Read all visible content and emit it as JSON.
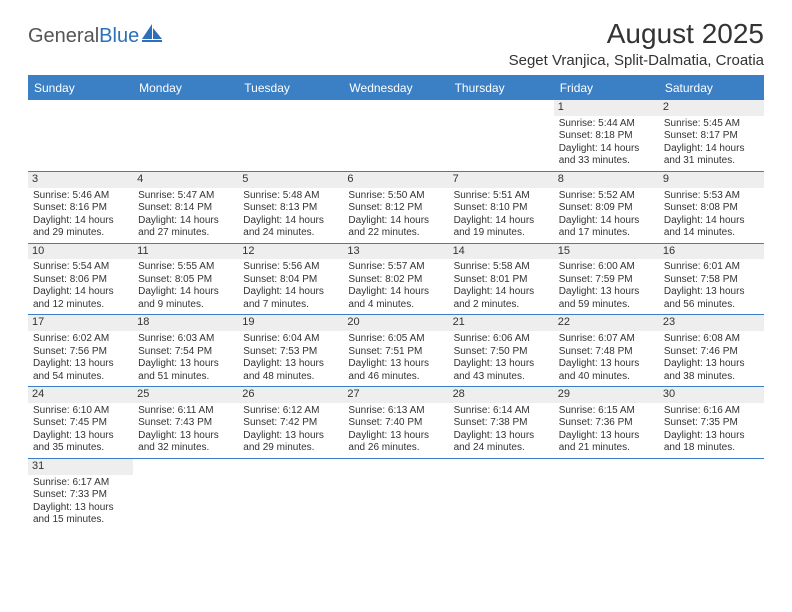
{
  "brand": {
    "part1": "General",
    "part2": "Blue"
  },
  "title": "August 2025",
  "location": "Seget Vranjica, Split-Dalmatia, Croatia",
  "colors": {
    "header_bg": "#3b7fc4",
    "header_text": "#ffffff",
    "daynum_bg": "#eeeeee",
    "rule": "#3b7fc4",
    "text": "#333333",
    "background": "#ffffff"
  },
  "day_headers": [
    "Sunday",
    "Monday",
    "Tuesday",
    "Wednesday",
    "Thursday",
    "Friday",
    "Saturday"
  ],
  "weeks": [
    [
      {
        "n": "",
        "empty": true
      },
      {
        "n": "",
        "empty": true
      },
      {
        "n": "",
        "empty": true
      },
      {
        "n": "",
        "empty": true
      },
      {
        "n": "",
        "empty": true
      },
      {
        "n": "1",
        "sunrise": "Sunrise: 5:44 AM",
        "sunset": "Sunset: 8:18 PM",
        "daylight": "Daylight: 14 hours and 33 minutes."
      },
      {
        "n": "2",
        "sunrise": "Sunrise: 5:45 AM",
        "sunset": "Sunset: 8:17 PM",
        "daylight": "Daylight: 14 hours and 31 minutes."
      }
    ],
    [
      {
        "n": "3",
        "sunrise": "Sunrise: 5:46 AM",
        "sunset": "Sunset: 8:16 PM",
        "daylight": "Daylight: 14 hours and 29 minutes."
      },
      {
        "n": "4",
        "sunrise": "Sunrise: 5:47 AM",
        "sunset": "Sunset: 8:14 PM",
        "daylight": "Daylight: 14 hours and 27 minutes."
      },
      {
        "n": "5",
        "sunrise": "Sunrise: 5:48 AM",
        "sunset": "Sunset: 8:13 PM",
        "daylight": "Daylight: 14 hours and 24 minutes."
      },
      {
        "n": "6",
        "sunrise": "Sunrise: 5:50 AM",
        "sunset": "Sunset: 8:12 PM",
        "daylight": "Daylight: 14 hours and 22 minutes."
      },
      {
        "n": "7",
        "sunrise": "Sunrise: 5:51 AM",
        "sunset": "Sunset: 8:10 PM",
        "daylight": "Daylight: 14 hours and 19 minutes."
      },
      {
        "n": "8",
        "sunrise": "Sunrise: 5:52 AM",
        "sunset": "Sunset: 8:09 PM",
        "daylight": "Daylight: 14 hours and 17 minutes."
      },
      {
        "n": "9",
        "sunrise": "Sunrise: 5:53 AM",
        "sunset": "Sunset: 8:08 PM",
        "daylight": "Daylight: 14 hours and 14 minutes."
      }
    ],
    [
      {
        "n": "10",
        "sunrise": "Sunrise: 5:54 AM",
        "sunset": "Sunset: 8:06 PM",
        "daylight": "Daylight: 14 hours and 12 minutes."
      },
      {
        "n": "11",
        "sunrise": "Sunrise: 5:55 AM",
        "sunset": "Sunset: 8:05 PM",
        "daylight": "Daylight: 14 hours and 9 minutes."
      },
      {
        "n": "12",
        "sunrise": "Sunrise: 5:56 AM",
        "sunset": "Sunset: 8:04 PM",
        "daylight": "Daylight: 14 hours and 7 minutes."
      },
      {
        "n": "13",
        "sunrise": "Sunrise: 5:57 AM",
        "sunset": "Sunset: 8:02 PM",
        "daylight": "Daylight: 14 hours and 4 minutes."
      },
      {
        "n": "14",
        "sunrise": "Sunrise: 5:58 AM",
        "sunset": "Sunset: 8:01 PM",
        "daylight": "Daylight: 14 hours and 2 minutes."
      },
      {
        "n": "15",
        "sunrise": "Sunrise: 6:00 AM",
        "sunset": "Sunset: 7:59 PM",
        "daylight": "Daylight: 13 hours and 59 minutes."
      },
      {
        "n": "16",
        "sunrise": "Sunrise: 6:01 AM",
        "sunset": "Sunset: 7:58 PM",
        "daylight": "Daylight: 13 hours and 56 minutes."
      }
    ],
    [
      {
        "n": "17",
        "sunrise": "Sunrise: 6:02 AM",
        "sunset": "Sunset: 7:56 PM",
        "daylight": "Daylight: 13 hours and 54 minutes."
      },
      {
        "n": "18",
        "sunrise": "Sunrise: 6:03 AM",
        "sunset": "Sunset: 7:54 PM",
        "daylight": "Daylight: 13 hours and 51 minutes."
      },
      {
        "n": "19",
        "sunrise": "Sunrise: 6:04 AM",
        "sunset": "Sunset: 7:53 PM",
        "daylight": "Daylight: 13 hours and 48 minutes."
      },
      {
        "n": "20",
        "sunrise": "Sunrise: 6:05 AM",
        "sunset": "Sunset: 7:51 PM",
        "daylight": "Daylight: 13 hours and 46 minutes."
      },
      {
        "n": "21",
        "sunrise": "Sunrise: 6:06 AM",
        "sunset": "Sunset: 7:50 PM",
        "daylight": "Daylight: 13 hours and 43 minutes."
      },
      {
        "n": "22",
        "sunrise": "Sunrise: 6:07 AM",
        "sunset": "Sunset: 7:48 PM",
        "daylight": "Daylight: 13 hours and 40 minutes."
      },
      {
        "n": "23",
        "sunrise": "Sunrise: 6:08 AM",
        "sunset": "Sunset: 7:46 PM",
        "daylight": "Daylight: 13 hours and 38 minutes."
      }
    ],
    [
      {
        "n": "24",
        "sunrise": "Sunrise: 6:10 AM",
        "sunset": "Sunset: 7:45 PM",
        "daylight": "Daylight: 13 hours and 35 minutes."
      },
      {
        "n": "25",
        "sunrise": "Sunrise: 6:11 AM",
        "sunset": "Sunset: 7:43 PM",
        "daylight": "Daylight: 13 hours and 32 minutes."
      },
      {
        "n": "26",
        "sunrise": "Sunrise: 6:12 AM",
        "sunset": "Sunset: 7:42 PM",
        "daylight": "Daylight: 13 hours and 29 minutes."
      },
      {
        "n": "27",
        "sunrise": "Sunrise: 6:13 AM",
        "sunset": "Sunset: 7:40 PM",
        "daylight": "Daylight: 13 hours and 26 minutes."
      },
      {
        "n": "28",
        "sunrise": "Sunrise: 6:14 AM",
        "sunset": "Sunset: 7:38 PM",
        "daylight": "Daylight: 13 hours and 24 minutes."
      },
      {
        "n": "29",
        "sunrise": "Sunrise: 6:15 AM",
        "sunset": "Sunset: 7:36 PM",
        "daylight": "Daylight: 13 hours and 21 minutes."
      },
      {
        "n": "30",
        "sunrise": "Sunrise: 6:16 AM",
        "sunset": "Sunset: 7:35 PM",
        "daylight": "Daylight: 13 hours and 18 minutes."
      }
    ],
    [
      {
        "n": "31",
        "sunrise": "Sunrise: 6:17 AM",
        "sunset": "Sunset: 7:33 PM",
        "daylight": "Daylight: 13 hours and 15 minutes."
      },
      {
        "n": "",
        "empty": true
      },
      {
        "n": "",
        "empty": true
      },
      {
        "n": "",
        "empty": true
      },
      {
        "n": "",
        "empty": true
      },
      {
        "n": "",
        "empty": true
      },
      {
        "n": "",
        "empty": true
      }
    ]
  ]
}
